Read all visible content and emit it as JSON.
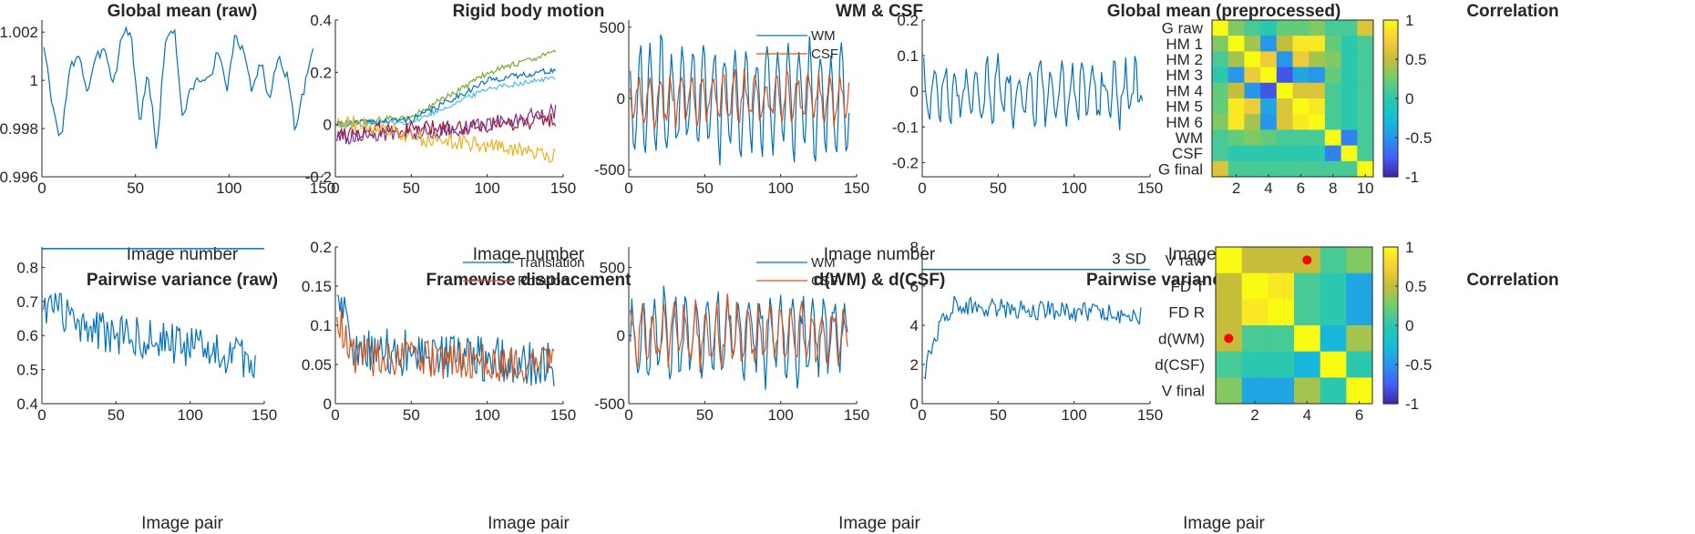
{
  "colors": {
    "blue": "#0072BD",
    "orange": "#D95319",
    "yellow": "#EDB120",
    "purple": "#7E2F8E",
    "green": "#77AC30",
    "light_blue": "#4DBEEE",
    "dark_red": "#A2142F",
    "marker_red": "#FF0000",
    "axis": "#262626"
  },
  "chart_data": [
    {
      "type": "line",
      "title": "Global mean (raw)",
      "xlabel": "Image number",
      "xlim": [
        0,
        150
      ],
      "ylim": [
        0.996,
        1.0025
      ],
      "xticks": [
        0,
        50,
        100,
        150
      ],
      "yticks": [
        0.996,
        0.998,
        1,
        1.002
      ],
      "ytick_labels": [
        "0.996",
        "0.998",
        "1",
        "1.002"
      ],
      "n_points": 145,
      "series": [
        {
          "color": "#0072BD",
          "x_start": 0,
          "x_step": 1,
          "mean": 0.99985,
          "amplitude": 0.0012,
          "values": [
            1.0015,
            0.9988,
            0.9976,
            1.0004,
            1.0012,
            0.9995,
            1.0008,
            1.0015,
            0.9998,
            1.0019,
            1.0021,
            0.9982,
            1.0003,
            0.9971,
            1.0017,
            1.0022,
            0.9984,
            0.9997,
            1.0001,
            0.9999,
            1.0014,
            0.9995,
            1.0018,
            1.0011,
            0.9996,
            1.0008,
            0.9991,
            1.0012,
            1.0001,
            0.9978,
            0.9998,
            1.0015
          ]
        }
      ]
    },
    {
      "type": "line",
      "title": "Rigid body motion",
      "xlabel": "Image number",
      "xlim": [
        0,
        150
      ],
      "ylim": [
        -0.2,
        0.4
      ],
      "xticks": [
        0,
        50,
        100,
        150
      ],
      "yticks": [
        -0.2,
        0,
        0.2,
        0.4
      ],
      "ytick_labels": [
        "-0.2",
        "0",
        "0.2",
        "0.4"
      ],
      "n_points": 145,
      "series": [
        {
          "color": "#77AC30",
          "trend": [
            [
              0,
              0.0
            ],
            [
              50,
              0.03
            ],
            [
              100,
              0.2
            ],
            [
              145,
              0.28
            ]
          ],
          "noise": 0.012
        },
        {
          "color": "#0072BD",
          "trend": [
            [
              0,
              0.0
            ],
            [
              50,
              0.02
            ],
            [
              100,
              0.17
            ],
            [
              145,
              0.21
            ]
          ],
          "noise": 0.012
        },
        {
          "color": "#4DBEEE",
          "trend": [
            [
              0,
              0.0
            ],
            [
              50,
              0.01
            ],
            [
              100,
              0.14
            ],
            [
              145,
              0.18
            ]
          ],
          "noise": 0.01
        },
        {
          "color": "#A2142F",
          "trend": [
            [
              0,
              -0.03
            ],
            [
              80,
              -0.01
            ],
            [
              145,
              0.02
            ]
          ],
          "noise": 0.03
        },
        {
          "color": "#7E2F8E",
          "trend": [
            [
              0,
              -0.05
            ],
            [
              80,
              -0.02
            ],
            [
              145,
              0.05
            ]
          ],
          "noise": 0.03
        },
        {
          "color": "#EDB120",
          "trend": [
            [
              0,
              0.02
            ],
            [
              50,
              -0.05
            ],
            [
              100,
              -0.08
            ],
            [
              145,
              -0.12
            ]
          ],
          "noise": 0.03
        }
      ]
    },
    {
      "type": "line",
      "title": "WM & CSF",
      "xlabel": "Image number",
      "xlim": [
        0,
        150
      ],
      "ylim": [
        -550,
        550
      ],
      "xticks": [
        0,
        50,
        100,
        150
      ],
      "yticks": [
        -500,
        0,
        500
      ],
      "ytick_labels": [
        "-500",
        "0",
        "500"
      ],
      "n_points": 145,
      "legend": {
        "placement": "top-right"
      },
      "series": [
        {
          "name": "WM",
          "color": "#0072BD",
          "amplitude": 420,
          "noise": 80
        },
        {
          "name": "CSF",
          "color": "#D95319",
          "amplitude": 180,
          "noise": 60
        }
      ]
    },
    {
      "type": "line",
      "title": "Global mean (preprocessed)",
      "xlabel": "Image number",
      "xlim": [
        0,
        150
      ],
      "ylim": [
        -0.24,
        0.2
      ],
      "xticks": [
        0,
        50,
        100,
        150
      ],
      "yticks": [
        -0.2,
        -0.1,
        0,
        0.1,
        0.2
      ],
      "ytick_labels": [
        "-0.2",
        "-0.1",
        "0",
        "0.1",
        "0.2"
      ],
      "n_points": 145,
      "series": [
        {
          "color": "#0072BD",
          "amplitude": 0.08,
          "noise": 0.04
        }
      ]
    },
    {
      "type": "heatmap",
      "title": "Correlation",
      "row_labels": [
        "G raw",
        "HM 1",
        "HM 2",
        "HM 3",
        "HM 4",
        "HM 5",
        "HM 6",
        "WM",
        "CSF",
        "G final"
      ],
      "xticks": [
        2,
        4,
        6,
        8,
        10
      ],
      "clim": [
        -1,
        1
      ],
      "colorbar_ticks": [
        1,
        0.5,
        0,
        -0.5,
        -1
      ],
      "colorbar_tick_labels": [
        "1",
        "0.5",
        "0",
        "-0.5",
        "-1"
      ],
      "values": [
        [
          1.0,
          0.3,
          0.1,
          0.0,
          0.2,
          0.2,
          0.3,
          0.1,
          0.1,
          0.6
        ],
        [
          0.3,
          1.0,
          0.4,
          -0.5,
          0.5,
          0.9,
          0.9,
          0.2,
          0.0,
          0.1
        ],
        [
          0.1,
          0.4,
          1.0,
          0.7,
          -0.5,
          0.7,
          0.4,
          0.3,
          0.0,
          0.1
        ],
        [
          0.0,
          -0.5,
          0.7,
          1.0,
          -0.8,
          -0.4,
          -0.5,
          0.2,
          0.0,
          0.1
        ],
        [
          0.2,
          0.5,
          -0.5,
          -0.8,
          1.0,
          0.6,
          0.6,
          0.1,
          0.0,
          0.1
        ],
        [
          0.2,
          0.9,
          0.7,
          -0.4,
          0.6,
          1.0,
          0.9,
          0.1,
          0.0,
          0.1
        ],
        [
          0.3,
          0.9,
          0.4,
          -0.5,
          0.6,
          0.9,
          1.0,
          0.1,
          0.0,
          0.1
        ],
        [
          0.1,
          0.2,
          0.3,
          0.2,
          0.1,
          0.1,
          0.1,
          1.0,
          -0.6,
          0.1
        ],
        [
          0.1,
          0.0,
          0.0,
          0.0,
          0.0,
          0.0,
          0.0,
          -0.6,
          1.0,
          0.1
        ],
        [
          0.6,
          0.1,
          0.1,
          0.1,
          0.1,
          0.1,
          0.1,
          0.1,
          0.1,
          1.0
        ]
      ]
    },
    {
      "type": "line",
      "title": "Pairwise variance (raw)",
      "xlabel": "Image pair",
      "xlim": [
        0,
        150
      ],
      "ylim": [
        0.4,
        0.86
      ],
      "xticks": [
        0,
        50,
        100,
        150
      ],
      "yticks": [
        0.4,
        0.5,
        0.6,
        0.7,
        0.8
      ],
      "ytick_labels": [
        "0.4",
        "0.5",
        "0.6",
        "0.7",
        "0.8"
      ],
      "n_points": 144,
      "threshold": 0.855,
      "series": [
        {
          "color": "#0072BD",
          "trend": [
            [
              0,
              0.7
            ],
            [
              30,
              0.62
            ],
            [
              144,
              0.53
            ]
          ],
          "noise": 0.06
        }
      ]
    },
    {
      "type": "line",
      "title": "Framewise displacement",
      "xlabel": "Image pair",
      "xlim": [
        0,
        150
      ],
      "ylim": [
        0,
        0.2
      ],
      "xticks": [
        0,
        50,
        100,
        150
      ],
      "yticks": [
        0,
        0.05,
        0.1,
        0.15,
        0.2
      ],
      "ytick_labels": [
        "0",
        "0.05",
        "0.1",
        "0.15",
        "0.2"
      ],
      "n_points": 144,
      "legend": {
        "placement": "top-right"
      },
      "series": [
        {
          "name": "Translation",
          "color": "#0072BD",
          "trend": [
            [
              0,
              0.15
            ],
            [
              10,
              0.07
            ],
            [
              144,
              0.05
            ]
          ],
          "noise": 0.03
        },
        {
          "name": "Rotation",
          "color": "#D95319",
          "trend": [
            [
              0,
              0.12
            ],
            [
              10,
              0.06
            ],
            [
              144,
              0.05
            ]
          ],
          "noise": 0.025
        }
      ]
    },
    {
      "type": "line",
      "title": "d(WM) & d(CSF)",
      "xlabel": "Image pair",
      "xlim": [
        0,
        150
      ],
      "ylim": [
        -500,
        650
      ],
      "xticks": [
        0,
        50,
        100,
        150
      ],
      "yticks": [
        -500,
        0,
        500
      ],
      "ytick_labels": [
        "-500",
        "0",
        "500"
      ],
      "n_points": 144,
      "legend": {
        "placement": "top-right"
      },
      "series": [
        {
          "name": "WM",
          "color": "#0072BD",
          "amplitude": 300,
          "noise": 120
        },
        {
          "name": "CSF",
          "color": "#D95319",
          "amplitude": 230,
          "noise": 90
        }
      ]
    },
    {
      "type": "line",
      "title": "Pairwise variance (preprocessed)",
      "xlabel": "Image pair",
      "xlim": [
        0,
        150
      ],
      "ylim": [
        0,
        8
      ],
      "xticks": [
        0,
        50,
        100,
        150
      ],
      "yticks": [
        0,
        2,
        4,
        6,
        8
      ],
      "ytick_labels": [
        "0",
        "2",
        "4",
        "6",
        "8"
      ],
      "n_points": 144,
      "threshold": 6.85,
      "threshold_label": "3 SD",
      "series": [
        {
          "color": "#0072BD",
          "trend": [
            [
              0,
              1.5
            ],
            [
              10,
              4.0
            ],
            [
              20,
              5.0
            ],
            [
              144,
              4.5
            ]
          ],
          "noise": 0.5
        }
      ]
    },
    {
      "type": "heatmap",
      "title": "Correlation",
      "row_labels": [
        "V raw",
        "FD T",
        "FD R",
        "d(WM)",
        "d(CSF)",
        "V final"
      ],
      "xticks": [
        2,
        4,
        6
      ],
      "clim": [
        -1,
        1
      ],
      "colorbar_ticks": [
        1,
        0.5,
        0,
        -0.5,
        -1
      ],
      "colorbar_tick_labels": [
        "1",
        "0.5",
        "0",
        "-0.5",
        "-1"
      ],
      "values": [
        [
          1.0,
          0.5,
          0.5,
          0.5,
          0.1,
          0.3
        ],
        [
          0.5,
          1.0,
          0.9,
          0.1,
          0.0,
          -0.4
        ],
        [
          0.5,
          0.9,
          1.0,
          0.1,
          0.0,
          -0.4
        ],
        [
          0.5,
          0.1,
          0.1,
          1.0,
          -0.3,
          0.4
        ],
        [
          0.1,
          0.0,
          0.0,
          -0.3,
          1.0,
          0.0
        ],
        [
          0.3,
          -0.4,
          -0.4,
          0.4,
          0.0,
          1.0
        ]
      ],
      "markers": [
        [
          1,
          4
        ],
        [
          4,
          1
        ]
      ]
    }
  ]
}
